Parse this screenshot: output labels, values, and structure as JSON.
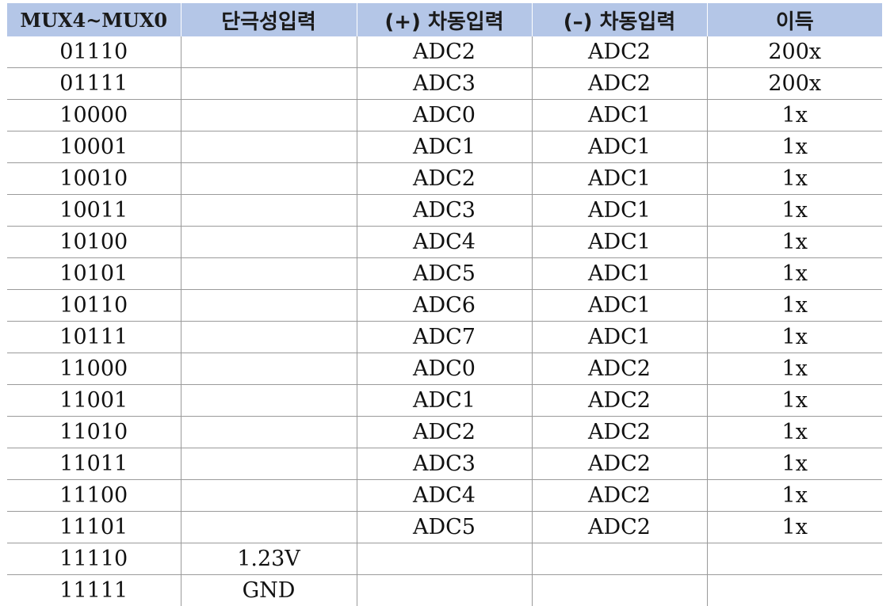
{
  "table": {
    "headers": [
      "MUX4~MUX0",
      "단극성입력",
      "(+) 차동입력",
      "(–) 차동입력",
      "이득"
    ],
    "rows": [
      [
        "01110",
        "",
        "ADC2",
        "ADC2",
        "200x"
      ],
      [
        "01111",
        "",
        "ADC3",
        "ADC2",
        "200x"
      ],
      [
        "10000",
        "",
        "ADC0",
        "ADC1",
        "1x"
      ],
      [
        "10001",
        "",
        "ADC1",
        "ADC1",
        "1x"
      ],
      [
        "10010",
        "",
        "ADC2",
        "ADC1",
        "1x"
      ],
      [
        "10011",
        "",
        "ADC3",
        "ADC1",
        "1x"
      ],
      [
        "10100",
        "",
        "ADC4",
        "ADC1",
        "1x"
      ],
      [
        "10101",
        "",
        "ADC5",
        "ADC1",
        "1x"
      ],
      [
        "10110",
        "",
        "ADC6",
        "ADC1",
        "1x"
      ],
      [
        "10111",
        "",
        "ADC7",
        "ADC1",
        "1x"
      ],
      [
        "11000",
        "",
        "ADC0",
        "ADC2",
        "1x"
      ],
      [
        "11001",
        "",
        "ADC1",
        "ADC2",
        "1x"
      ],
      [
        "11010",
        "",
        "ADC2",
        "ADC2",
        "1x"
      ],
      [
        "11011",
        "",
        "ADC3",
        "ADC2",
        "1x"
      ],
      [
        "11100",
        "",
        "ADC4",
        "ADC2",
        "1x"
      ],
      [
        "11101",
        "",
        "ADC5",
        "ADC2",
        "1x"
      ],
      [
        "11110",
        "1.23V",
        "",
        "",
        ""
      ],
      [
        "11111",
        "GND",
        "",
        "",
        ""
      ]
    ]
  },
  "colors": {
    "header_bg": "#b4c6e7",
    "grid_line": "#9a9a9a"
  }
}
